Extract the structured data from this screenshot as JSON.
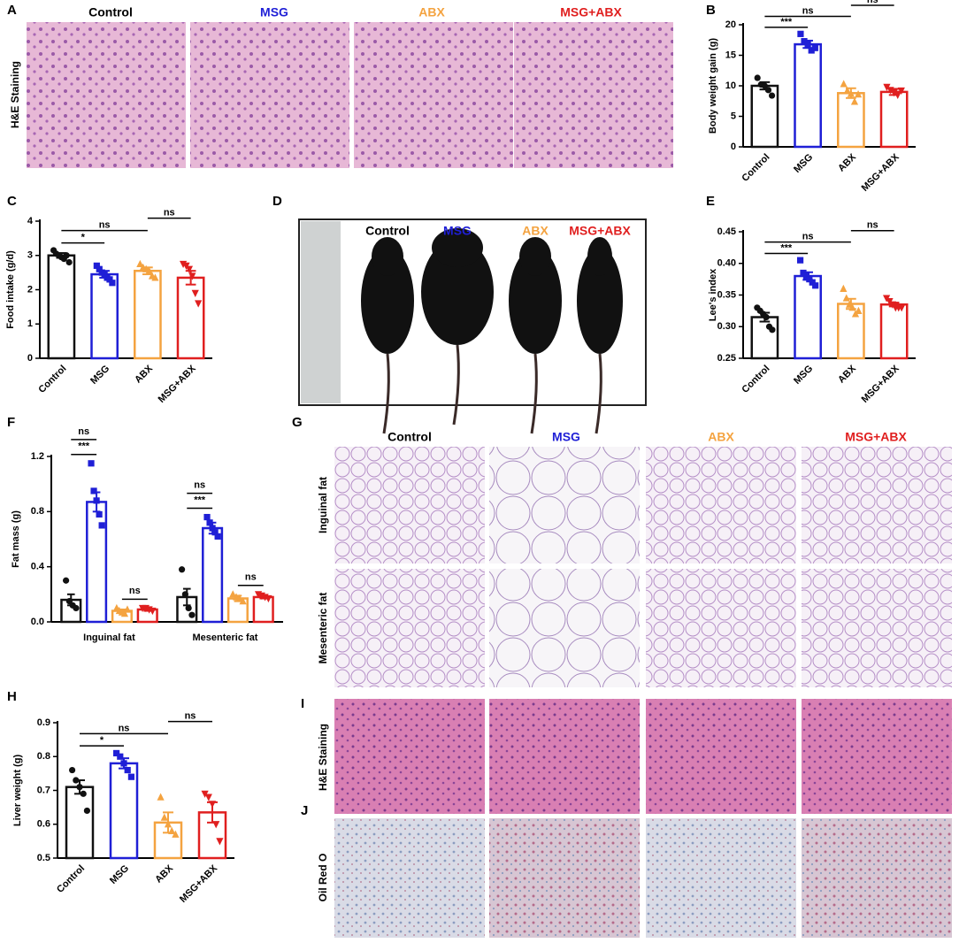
{
  "chart_data": [
    {
      "panel": "B",
      "type": "bar",
      "ylabel": "Body weight gain (g)",
      "categories": [
        "Control",
        "MSG",
        "ABX",
        "MSG+ABX"
      ],
      "colors": [
        "#111111",
        "#1f1fd6",
        "#f4a340",
        "#e01f1f"
      ],
      "markers": [
        "circle",
        "square",
        "triangle-up",
        "triangle-down"
      ],
      "values": [
        10,
        16.8,
        8.8,
        9
      ],
      "errors": [
        0.6,
        0.6,
        0.8,
        0.5
      ],
      "points": [
        [
          11.3,
          10.2,
          10,
          9.3,
          8.4
        ],
        [
          18.5,
          17.3,
          16.8,
          15.8,
          16.2
        ],
        [
          10.3,
          9.2,
          8.7,
          7.4,
          8.6
        ],
        [
          9.8,
          9.3,
          8.9,
          8.5,
          9.2
        ]
      ],
      "annotations": [
        {
          "text": "***",
          "between": [
            0,
            1
          ]
        },
        {
          "text": "ns",
          "between": [
            0,
            2
          ]
        },
        {
          "text": "ns",
          "between": [
            2,
            3
          ]
        }
      ],
      "ylim": [
        0,
        20
      ],
      "yticks": [
        0,
        5,
        10,
        15,
        20
      ]
    },
    {
      "panel": "C",
      "type": "bar",
      "ylabel": "Food intake (g/d)",
      "categories": [
        "Control",
        "MSG",
        "ABX",
        "MSG+ABX"
      ],
      "colors": [
        "#111111",
        "#1f1fd6",
        "#f4a340",
        "#e01f1f"
      ],
      "markers": [
        "circle",
        "square",
        "triangle-up",
        "triangle-down"
      ],
      "values": [
        3.0,
        2.45,
        2.55,
        2.35
      ],
      "errors": [
        0.07,
        0.1,
        0.1,
        0.2
      ],
      "points": [
        [
          3.15,
          3.05,
          3.0,
          2.95,
          2.9,
          3.0,
          2.8
        ],
        [
          2.7,
          2.6,
          2.5,
          2.45,
          2.35,
          2.3,
          2.2
        ],
        [
          2.75,
          2.65,
          2.6,
          2.55,
          2.4,
          2.35
        ],
        [
          2.75,
          2.7,
          2.6,
          2.4,
          1.9,
          1.6
        ]
      ],
      "annotations": [
        {
          "text": "*",
          "between": [
            0,
            1
          ]
        },
        {
          "text": "ns",
          "between": [
            0,
            2
          ]
        },
        {
          "text": "ns",
          "between": [
            2,
            3
          ]
        }
      ],
      "ylim": [
        0,
        4
      ],
      "yticks": [
        0,
        1,
        2,
        3,
        4
      ]
    },
    {
      "panel": "E",
      "type": "bar",
      "ylabel": "Lee's index",
      "categories": [
        "Control",
        "MSG",
        "ABX",
        "MSG+ABX"
      ],
      "colors": [
        "#111111",
        "#1f1fd6",
        "#f4a340",
        "#e01f1f"
      ],
      "markers": [
        "circle",
        "square",
        "triangle-up",
        "triangle-down"
      ],
      "values": [
        0.315,
        0.38,
        0.336,
        0.335
      ],
      "errors": [
        0.007,
        0.006,
        0.008,
        0.003
      ],
      "points": [
        [
          0.33,
          0.325,
          0.32,
          0.315,
          0.3,
          0.295
        ],
        [
          0.405,
          0.385,
          0.38,
          0.375,
          0.37,
          0.365
        ],
        [
          0.36,
          0.345,
          0.335,
          0.33,
          0.32,
          0.325
        ],
        [
          0.345,
          0.34,
          0.335,
          0.33,
          0.33,
          0.33
        ]
      ],
      "annotations": [
        {
          "text": "***",
          "between": [
            0,
            1
          ]
        },
        {
          "text": "ns",
          "between": [
            0,
            2
          ]
        },
        {
          "text": "ns",
          "between": [
            2,
            3
          ]
        }
      ],
      "ylim": [
        0.25,
        0.45
      ],
      "yticks": [
        0.25,
        {
          "value": 0.3,
          "label": "0.30"
        },
        0.35,
        {
          "value": 0.4,
          "label": "0.40"
        },
        0.45
      ]
    },
    {
      "panel": "F",
      "type": "grouped_bar",
      "ylabel": "Fat mass (g)",
      "categories": [
        "Inguinal fat",
        "Mesenteric fat"
      ],
      "series": [
        {
          "color": "#111111",
          "marker": "circle",
          "values": [
            0.16,
            0.18
          ],
          "errors": [
            0.04,
            0.06
          ],
          "points": [
            [
              0.3,
              0.15,
              0.12,
              0.1
            ],
            [
              0.38,
              0.2,
              0.1,
              0.05
            ]
          ]
        },
        {
          "color": "#1f1fd6",
          "marker": "square",
          "values": [
            0.87,
            0.68
          ],
          "errors": [
            0.07,
            0.04
          ],
          "points": [
            [
              1.15,
              0.95,
              0.88,
              0.78,
              0.7
            ],
            [
              0.76,
              0.72,
              0.68,
              0.65,
              0.62
            ]
          ]
        },
        {
          "color": "#f4a340",
          "marker": "triangle-up",
          "values": [
            0.08,
            0.17
          ],
          "errors": [
            0.01,
            0.02
          ],
          "points": [
            [
              0.1,
              0.08,
              0.07,
              0.06,
              0.09
            ],
            [
              0.2,
              0.18,
              0.17,
              0.15
            ]
          ]
        },
        {
          "color": "#e01f1f",
          "marker": "triangle-down",
          "values": [
            0.09,
            0.18
          ],
          "errors": [
            0.01,
            0.01
          ],
          "points": [
            [
              0.1,
              0.1,
              0.09,
              0.08
            ],
            [
              0.2,
              0.19,
              0.18,
              0.17
            ]
          ]
        }
      ],
      "annotations": [
        {
          "group": 0,
          "text": "***",
          "between": [
            0,
            1
          ]
        },
        {
          "group": 0,
          "text": "ns",
          "between": [
            0,
            1
          ]
        },
        {
          "group": 0,
          "text": "ns",
          "between": [
            2,
            3
          ]
        },
        {
          "group": 1,
          "text": "***",
          "between": [
            0,
            1
          ]
        },
        {
          "group": 1,
          "text": "ns",
          "between": [
            0,
            1
          ]
        },
        {
          "group": 1,
          "text": "ns",
          "between": [
            2,
            3
          ]
        }
      ],
      "ylim": [
        0,
        1.2
      ],
      "yticks": [
        {
          "value": 0,
          "label": "0.0"
        },
        0.4,
        0.8,
        1.2
      ]
    },
    {
      "panel": "H",
      "type": "bar",
      "ylabel": "Liver weight (g)",
      "categories": [
        "Control",
        "MSG",
        "ABX",
        "MSG+ABX"
      ],
      "colors": [
        "#111111",
        "#1f1fd6",
        "#f4a340",
        "#e01f1f"
      ],
      "markers": [
        "circle",
        "square",
        "triangle-up",
        "triangle-down"
      ],
      "values": [
        0.71,
        0.78,
        0.605,
        0.635
      ],
      "errors": [
        0.02,
        0.015,
        0.03,
        0.03
      ],
      "points": [
        [
          0.76,
          0.73,
          0.71,
          0.69,
          0.64
        ],
        [
          0.81,
          0.8,
          0.78,
          0.76,
          0.74
        ],
        [
          0.68,
          0.62,
          0.6,
          0.58,
          0.57
        ],
        [
          0.69,
          0.68,
          0.66,
          0.6,
          0.55
        ]
      ],
      "annotations": [
        {
          "text": "*",
          "between": [
            0,
            1
          ]
        },
        {
          "text": "ns",
          "between": [
            0,
            2
          ]
        },
        {
          "text": "ns",
          "between": [
            2,
            3
          ]
        }
      ],
      "ylim": [
        0.5,
        0.9
      ],
      "yticks": [
        0.5,
        0.6,
        0.7,
        0.8,
        0.9
      ]
    }
  ],
  "image_panels": {
    "A": {
      "letter": "A",
      "columns": [
        "Control",
        "MSG",
        "ABX",
        "MSG+ABX"
      ],
      "rows": [
        "H&E Staining"
      ]
    },
    "D": {
      "letter": "D",
      "labels": [
        "Control",
        "MSG",
        "ABX",
        "MSG+ABX"
      ]
    },
    "G": {
      "letter": "G",
      "columns": [
        "Control",
        "MSG",
        "ABX",
        "MSG+ABX"
      ],
      "rows": [
        "Inguinal fat",
        "Mesenteric fat"
      ]
    },
    "I": {
      "letter": "I",
      "rows": [
        "H&E Staining"
      ]
    },
    "J": {
      "letter": "J",
      "rows": [
        "Oil Red O"
      ]
    }
  }
}
